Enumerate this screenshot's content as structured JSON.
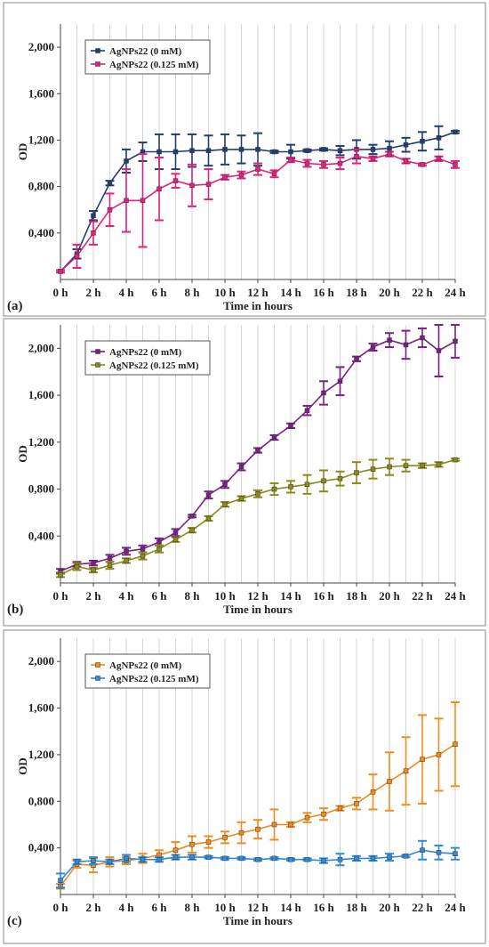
{
  "chart_data": [
    {
      "type": "line",
      "panel_label": "(a)",
      "xlabel": "Time in hours",
      "ylabel": "OD",
      "x_ticks": [
        "0 h",
        "2 h",
        "4 h",
        "6 h",
        "8 h",
        "10 h",
        "12 h",
        "14 h",
        "16 h",
        "18 h",
        "20 h",
        "22 h",
        "24 h"
      ],
      "y_ticks": [
        "0,400",
        "0,800",
        "1,200",
        "1,600",
        "2,000"
      ],
      "xlim": [
        0,
        24
      ],
      "ylim": [
        0,
        2.2
      ],
      "grid": "vertical",
      "legend_position": "top-left",
      "x": [
        0,
        1,
        2,
        3,
        4,
        5,
        6,
        7,
        8,
        9,
        10,
        11,
        12,
        13,
        14,
        15,
        16,
        17,
        18,
        19,
        20,
        21,
        22,
        23,
        24
      ],
      "series": [
        {
          "name": "AgNPs22 (0 mM)",
          "color": "#1f3f73",
          "values": [
            0.07,
            0.22,
            0.55,
            0.83,
            1.02,
            1.1,
            1.1,
            1.1,
            1.11,
            1.11,
            1.12,
            1.12,
            1.12,
            1.1,
            1.1,
            1.11,
            1.12,
            1.11,
            1.12,
            1.12,
            1.13,
            1.16,
            1.19,
            1.22,
            1.27
          ],
          "errors": [
            0.01,
            0.04,
            0.04,
            0.02,
            0.1,
            0.08,
            0.15,
            0.15,
            0.14,
            0.13,
            0.13,
            0.12,
            0.14,
            0.01,
            0.06,
            0.01,
            0.01,
            0.04,
            0.08,
            0.04,
            0.06,
            0.06,
            0.08,
            0.1,
            0.01
          ]
        },
        {
          "name": "AgNPs22 (0.125 mM)",
          "color": "#e0227a",
          "values": [
            0.07,
            0.2,
            0.4,
            0.6,
            0.68,
            0.68,
            0.78,
            0.85,
            0.81,
            0.82,
            0.88,
            0.9,
            0.95,
            0.91,
            1.03,
            1.0,
            0.99,
            1.0,
            1.06,
            1.04,
            1.08,
            1.02,
            0.99,
            1.04,
            0.99
          ],
          "errors": [
            0.01,
            0.1,
            0.1,
            0.14,
            0.27,
            0.4,
            0.27,
            0.06,
            0.18,
            0.13,
            0.02,
            0.03,
            0.05,
            0.03,
            0.02,
            0.03,
            0.03,
            0.05,
            0.06,
            0.02,
            0.02,
            0.02,
            0.01,
            0.02,
            0.03
          ]
        }
      ]
    },
    {
      "type": "line",
      "panel_label": "(b)",
      "xlabel": "Time in hours",
      "ylabel": "OD",
      "x_ticks": [
        "0 h",
        "2 h",
        "4 h",
        "6 h",
        "8 h",
        "10 h",
        "12 h",
        "14 h",
        "16 h",
        "18 h",
        "20 h",
        "22 h",
        "24 h"
      ],
      "y_ticks": [
        "0,400",
        "0,800",
        "1,200",
        "1,600",
        "2,000"
      ],
      "xlim": [
        0,
        24
      ],
      "ylim": [
        0,
        2.2
      ],
      "grid": "vertical",
      "legend_position": "top-left",
      "x": [
        0,
        1,
        2,
        3,
        4,
        5,
        6,
        7,
        8,
        9,
        10,
        11,
        12,
        13,
        14,
        15,
        16,
        17,
        18,
        19,
        20,
        21,
        22,
        23,
        24
      ],
      "series": [
        {
          "name": "AgNPs22 (0 mM)",
          "color": "#7a1f86",
          "values": [
            0.1,
            0.16,
            0.17,
            0.21,
            0.27,
            0.29,
            0.35,
            0.43,
            0.57,
            0.75,
            0.84,
            0.99,
            1.13,
            1.24,
            1.34,
            1.47,
            1.62,
            1.72,
            1.91,
            2.01,
            2.07,
            2.03,
            2.09,
            1.98,
            2.06
          ],
          "errors": [
            0.02,
            0.02,
            0.02,
            0.03,
            0.03,
            0.03,
            0.03,
            0.03,
            0.01,
            0.03,
            0.03,
            0.03,
            0.02,
            0.02,
            0.02,
            0.04,
            0.1,
            0.12,
            0.02,
            0.03,
            0.06,
            0.12,
            0.08,
            0.22,
            0.14
          ]
        },
        {
          "name": "AgNPs22 (0.125 mM)",
          "color": "#8a8a1a",
          "values": [
            0.07,
            0.14,
            0.11,
            0.15,
            0.19,
            0.23,
            0.29,
            0.37,
            0.45,
            0.55,
            0.67,
            0.72,
            0.76,
            0.8,
            0.82,
            0.84,
            0.87,
            0.89,
            0.94,
            0.97,
            0.99,
            1.0,
            1.0,
            1.01,
            1.05
          ],
          "errors": [
            0.02,
            0.03,
            0.02,
            0.03,
            0.02,
            0.03,
            0.03,
            0.02,
            0.02,
            0.02,
            0.02,
            0.02,
            0.03,
            0.05,
            0.05,
            0.08,
            0.09,
            0.06,
            0.09,
            0.08,
            0.07,
            0.05,
            0.02,
            0.02,
            0.01
          ]
        }
      ]
    },
    {
      "type": "line",
      "panel_label": "(c)",
      "xlabel": "Time in hours",
      "ylabel": "OD",
      "x_ticks": [
        "0 h",
        "2 h",
        "4 h",
        "6 h",
        "8 h",
        "10 h",
        "12 h",
        "14 h",
        "16 h",
        "18 h",
        "20 h",
        "22 h",
        "24 h"
      ],
      "y_ticks": [
        "0,400",
        "0,800",
        "1,200",
        "1,600",
        "2,000"
      ],
      "xlim": [
        0,
        24
      ],
      "ylim": [
        0,
        2.2
      ],
      "grid": "vertical",
      "legend_position": "top-left",
      "x": [
        0,
        1,
        2,
        3,
        4,
        5,
        6,
        7,
        8,
        9,
        10,
        11,
        12,
        13,
        14,
        15,
        16,
        17,
        18,
        19,
        20,
        21,
        22,
        23,
        24
      ],
      "series": [
        {
          "name": "AgNPs22 (0 mM)",
          "color": "#f28a1c",
          "values": [
            0.07,
            0.26,
            0.25,
            0.28,
            0.29,
            0.31,
            0.34,
            0.38,
            0.43,
            0.45,
            0.49,
            0.53,
            0.56,
            0.6,
            0.6,
            0.66,
            0.69,
            0.74,
            0.78,
            0.88,
            0.97,
            1.06,
            1.16,
            1.2,
            1.29
          ],
          "errors": [
            0.02,
            0.03,
            0.06,
            0.04,
            0.03,
            0.04,
            0.04,
            0.07,
            0.07,
            0.05,
            0.05,
            0.09,
            0.08,
            0.13,
            0.02,
            0.04,
            0.05,
            0.02,
            0.05,
            0.15,
            0.25,
            0.29,
            0.38,
            0.31,
            0.36
          ]
        },
        {
          "name": "AgNPs22 (0.125 mM)",
          "color": "#2f8ad8",
          "values": [
            0.12,
            0.28,
            0.29,
            0.28,
            0.31,
            0.3,
            0.3,
            0.32,
            0.32,
            0.32,
            0.31,
            0.31,
            0.3,
            0.31,
            0.3,
            0.3,
            0.29,
            0.3,
            0.31,
            0.31,
            0.32,
            0.33,
            0.38,
            0.36,
            0.35
          ],
          "errors": [
            0.06,
            0.02,
            0.03,
            0.02,
            0.03,
            0.02,
            0.02,
            0.02,
            0.02,
            0.01,
            0.01,
            0.01,
            0.01,
            0.01,
            0.01,
            0.01,
            0.02,
            0.05,
            0.02,
            0.02,
            0.03,
            0.01,
            0.08,
            0.06,
            0.05
          ]
        }
      ]
    }
  ]
}
